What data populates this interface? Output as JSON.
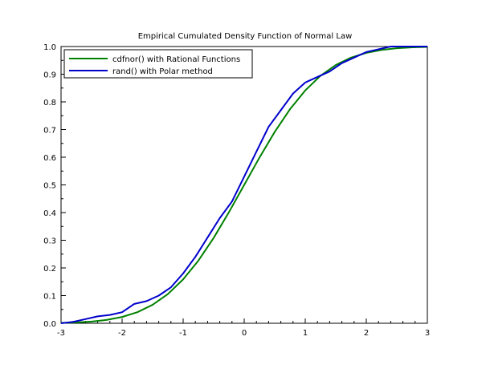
{
  "chart_data": {
    "type": "line",
    "title": "Empirical Cumulated Density Function of Normal Law",
    "xlabel": "",
    "ylabel": "",
    "xlim": [
      -3,
      3
    ],
    "ylim": [
      0,
      1
    ],
    "x_ticks": [
      -3,
      -2,
      -1,
      0,
      1,
      2,
      3
    ],
    "x_tick_labels": [
      "-3",
      "-2",
      "-1",
      "0",
      "1",
      "2",
      "3"
    ],
    "y_ticks": [
      0,
      0.1,
      0.2,
      0.3,
      0.4,
      0.5,
      0.6,
      0.7,
      0.8,
      0.9,
      1
    ],
    "y_tick_labels": [
      "0.0",
      "0.1",
      "0.2",
      "0.3",
      "0.4",
      "0.5",
      "0.6",
      "0.7",
      "0.8",
      "0.9",
      "1.0"
    ],
    "grid": false,
    "legend_position": "top-left",
    "series": [
      {
        "name": "cdfnor() with Rational Functions",
        "color": "#008000",
        "x": [
          -3,
          -2.75,
          -2.5,
          -2.25,
          -2,
          -1.75,
          -1.5,
          -1.25,
          -1,
          -0.75,
          -0.5,
          -0.25,
          0,
          0.25,
          0.5,
          0.75,
          1,
          1.25,
          1.5,
          1.75,
          2,
          2.25,
          2.5,
          2.75,
          3
        ],
        "y": [
          0.0013,
          0.003,
          0.0062,
          0.0122,
          0.0228,
          0.0401,
          0.0668,
          0.1056,
          0.1587,
          0.2266,
          0.3085,
          0.4013,
          0.5,
          0.5987,
          0.6915,
          0.7734,
          0.8413,
          0.8944,
          0.9332,
          0.9599,
          0.9772,
          0.9878,
          0.9938,
          0.997,
          0.9987
        ]
      },
      {
        "name": "rand() with Polar method",
        "color": "#0000cc",
        "x": [
          -3,
          -2.8,
          -2.6,
          -2.4,
          -2.2,
          -2,
          -1.8,
          -1.6,
          -1.4,
          -1.2,
          -1,
          -0.8,
          -0.6,
          -0.4,
          -0.2,
          0,
          0.2,
          0.4,
          0.6,
          0.8,
          1,
          1.2,
          1.4,
          1.6,
          1.8,
          2,
          2.2,
          2.4,
          2.6,
          2.8,
          3
        ],
        "y": [
          0,
          0.005,
          0.015,
          0.025,
          0.03,
          0.04,
          0.07,
          0.08,
          0.1,
          0.13,
          0.18,
          0.24,
          0.31,
          0.38,
          0.44,
          0.53,
          0.62,
          0.71,
          0.77,
          0.83,
          0.87,
          0.89,
          0.91,
          0.94,
          0.96,
          0.98,
          0.99,
          1,
          1,
          1,
          1
        ]
      }
    ]
  }
}
